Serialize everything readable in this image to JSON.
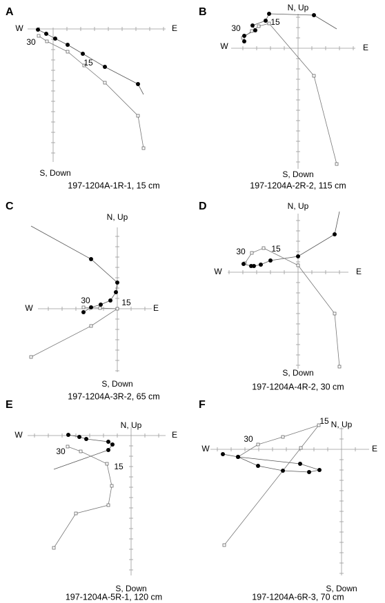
{
  "panels": [
    {
      "letter": "A",
      "west": "W",
      "east": "E",
      "south": "S, Down",
      "steps": [
        "30",
        "15"
      ],
      "caption": "197-1204A-1R-1, 15 cm"
    },
    {
      "letter": "B",
      "north": "N, Up",
      "west": "W",
      "east": "E",
      "south": "S, Down",
      "steps": [
        "30",
        "15"
      ],
      "caption": "197-1204A-2R-2, 115 cm"
    },
    {
      "letter": "C",
      "north": "N, Up",
      "west": "W",
      "east": "E",
      "south": "S, Down",
      "steps": [
        "30",
        "15"
      ],
      "caption": "197-1204A-3R-2, 65 cm"
    },
    {
      "letter": "D",
      "north": "N, Up",
      "west": "W",
      "east": "E",
      "south": "S, Down",
      "steps": [
        "30",
        "15"
      ],
      "caption": "197-1204A-4R-2, 30 cm"
    },
    {
      "letter": "E",
      "north": "N, Up",
      "west": "W",
      "east": "E",
      "south": "S, Down",
      "steps": [
        "30",
        "15"
      ],
      "caption": "197-1204A-5R-1, 120 cm"
    },
    {
      "letter": "F",
      "north": "N, Up",
      "west": "W",
      "east": "E",
      "south": "S, Down",
      "steps": [
        "30",
        "15"
      ],
      "caption": "197-1204A-6R-3, 70 cm"
    }
  ]
}
